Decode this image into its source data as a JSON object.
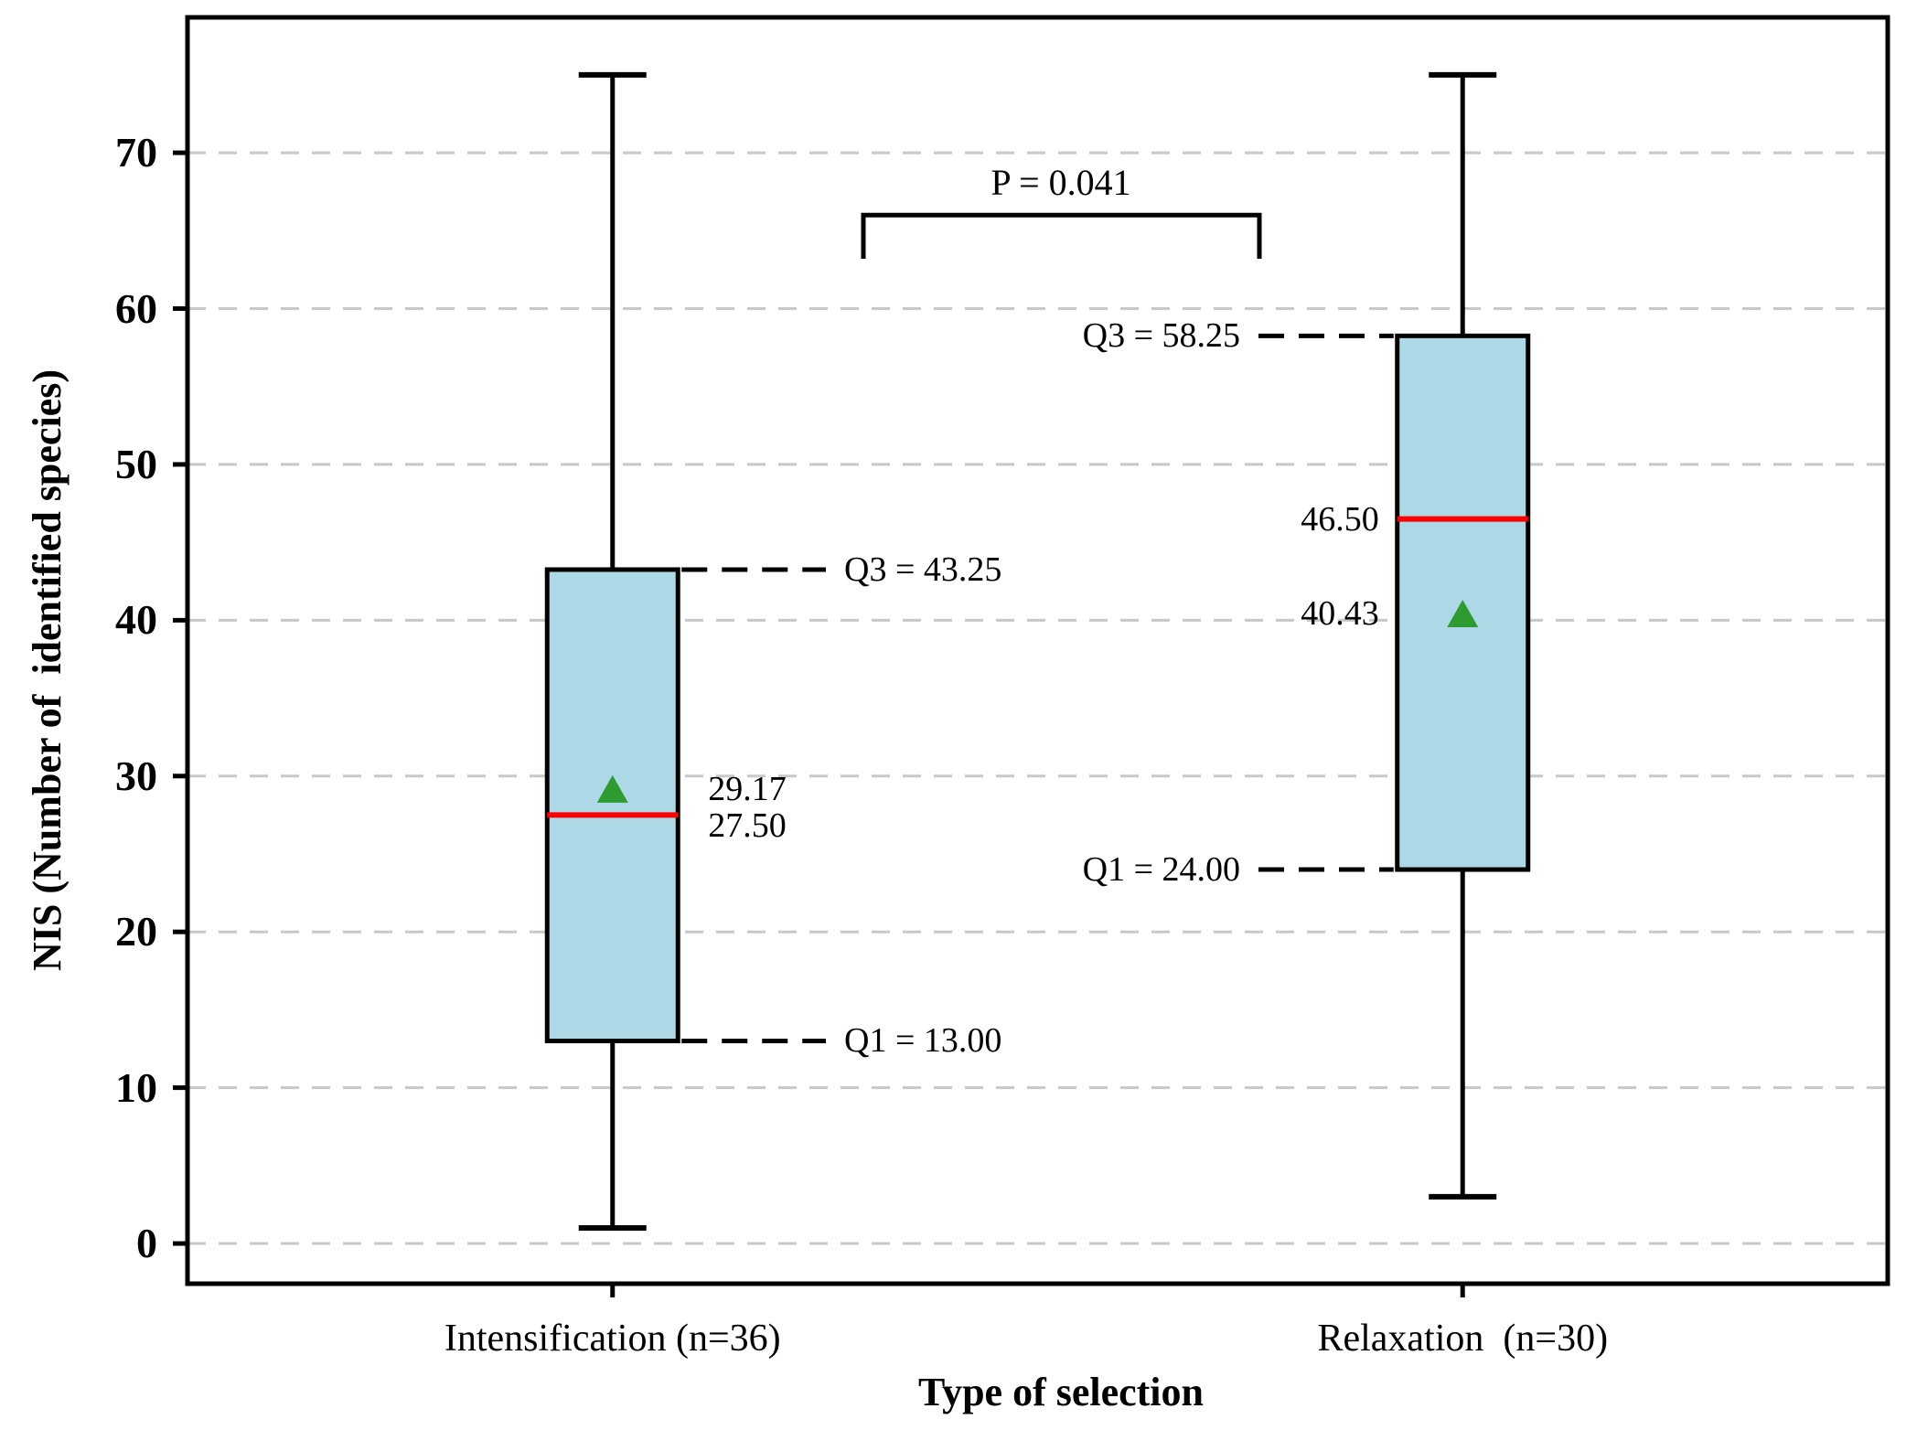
{
  "chart_data": {
    "type": "boxplot",
    "title": "",
    "xlabel": "Type of selection",
    "ylabel": "NIS (Number of  identified species)",
    "ylim": [
      -2.58,
      78.69
    ],
    "yticks": [
      {
        "label": "0",
        "value": 0
      },
      {
        "label": "10",
        "value": 10
      },
      {
        "label": "20",
        "value": 20
      },
      {
        "label": "30",
        "value": 30
      },
      {
        "label": "40",
        "value": 40
      },
      {
        "label": "50",
        "value": 50
      },
      {
        "label": "60",
        "value": 60
      },
      {
        "label": "70",
        "value": 70
      }
    ],
    "grid": "horizontal dashed",
    "legend": "none",
    "categories": [
      "Intensification (n=36)",
      "Relaxation  (n=30)"
    ],
    "series": [
      {
        "name": "Intensification",
        "whisker_low": 1,
        "q1": 13.0,
        "median": 27.5,
        "mean": 29.17,
        "q3": 43.25,
        "whisker_high": 75,
        "labels": {
          "q3": "Q3 = 43.25",
          "q1": "Q1 = 13.00",
          "mean": "29.17",
          "median": "27.50"
        },
        "label_side": "right"
      },
      {
        "name": "Relaxation",
        "whisker_low": 3,
        "q1": 24.0,
        "median": 46.5,
        "mean": 40.43,
        "q3": 58.25,
        "whisker_high": 75,
        "labels": {
          "q3": "Q3 = 58.25",
          "q1": "Q1 = 24.00",
          "mean": "40.43",
          "median": "46.50"
        },
        "label_side": "left"
      }
    ],
    "significance": {
      "label": "P = 0.041",
      "bracket_top_value": 66.0,
      "bracket_arm_value": 63.2
    },
    "colors": {
      "background": "#FFFFFF",
      "box_fill": "#ADD8E6",
      "box_edge": "#000000",
      "median_line": "#FF0000",
      "mean_marker": "#2E9B30",
      "gridline": "#C8C8C8",
      "annotation_line": "#000000",
      "text": "#000000"
    }
  }
}
